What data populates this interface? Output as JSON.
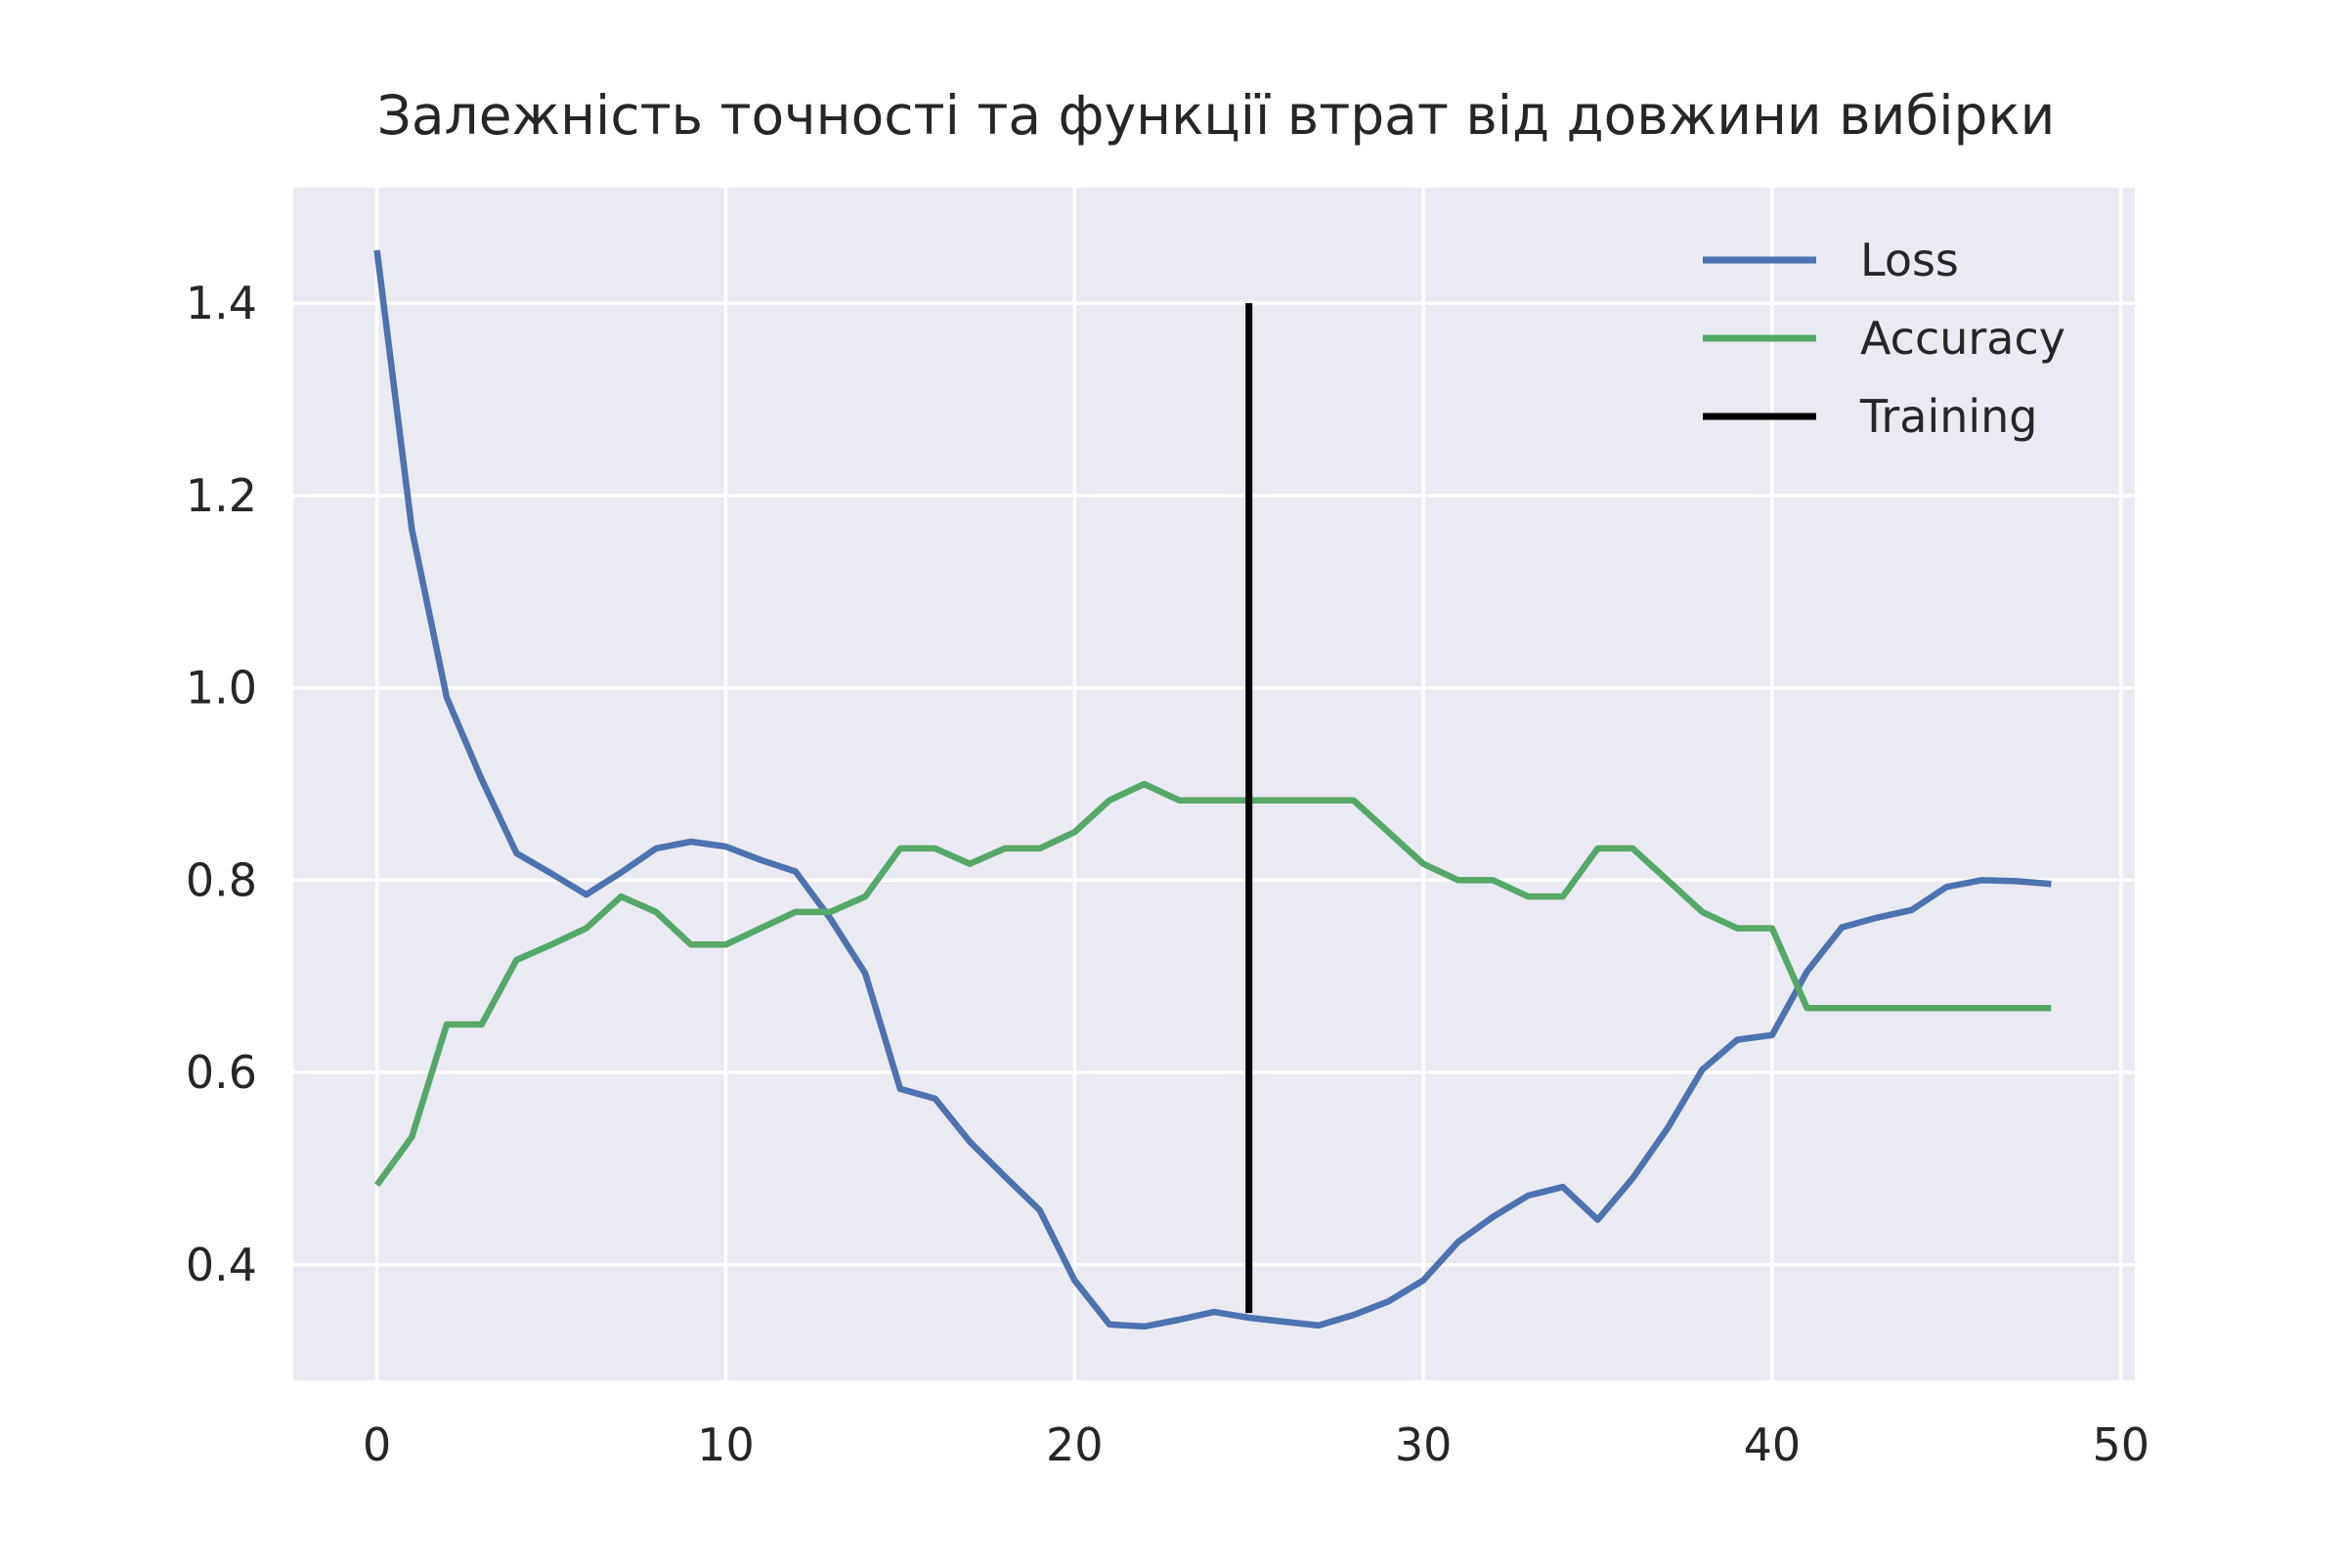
{
  "chart_data": {
    "type": "line",
    "title": "Залежність точності та функції втрат від довжини вибірки",
    "xlabel": "",
    "ylabel": "",
    "xlim": [
      -2.4,
      50.4
    ],
    "ylim": [
      0.28,
      1.52
    ],
    "xticks": [
      0,
      10,
      20,
      30,
      40,
      50
    ],
    "yticks": [
      0.4,
      0.6,
      0.8,
      1.0,
      1.2,
      1.4
    ],
    "xtick_labels": [
      "0",
      "10",
      "20",
      "30",
      "40",
      "50"
    ],
    "ytick_labels": [
      "0.4",
      "0.6",
      "0.8",
      "1.0",
      "1.2",
      "1.4"
    ],
    "grid": true,
    "legend_position": "top-right",
    "background_color": "#eaeaf2",
    "series": [
      {
        "name": "Loss",
        "color": "#4c72b0",
        "x": [
          0,
          1,
          2,
          3,
          4,
          5,
          6,
          7,
          8,
          9,
          10,
          11,
          12,
          13,
          14,
          15,
          16,
          17,
          18,
          19,
          20,
          21,
          22,
          23,
          24,
          25,
          26,
          27,
          28,
          29,
          30,
          31,
          32,
          33,
          34,
          35,
          36,
          37,
          38,
          39,
          40,
          41,
          42,
          43,
          44,
          45,
          46,
          47,
          48
        ],
        "y": [
          1.455,
          1.165,
          0.99,
          0.905,
          0.828,
          0.807,
          0.785,
          0.808,
          0.833,
          0.84,
          0.835,
          0.821,
          0.809,
          0.76,
          0.703,
          0.583,
          0.573,
          0.528,
          0.492,
          0.457,
          0.384,
          0.338,
          0.336,
          0.343,
          0.351,
          0.345,
          0.341,
          0.337,
          0.348,
          0.362,
          0.384,
          0.424,
          0.45,
          0.472,
          0.481,
          0.447,
          0.49,
          0.542,
          0.603,
          0.634,
          0.639,
          0.705,
          0.751,
          0.761,
          0.769,
          0.793,
          0.8,
          0.799,
          0.796
        ]
      },
      {
        "name": "Accuracy",
        "color": "#55a868",
        "x": [
          0,
          1,
          2,
          3,
          4,
          5,
          6,
          7,
          8,
          9,
          10,
          11,
          12,
          13,
          14,
          15,
          16,
          17,
          18,
          19,
          20,
          21,
          22,
          23,
          24,
          25,
          26,
          27,
          28,
          29,
          30,
          31,
          32,
          33,
          34,
          35,
          36,
          37,
          38,
          39,
          40,
          41,
          42,
          43,
          44,
          45,
          46,
          47,
          48
        ],
        "y": [
          0.483,
          0.533,
          0.65,
          0.65,
          0.717,
          0.733,
          0.75,
          0.783,
          0.767,
          0.733,
          0.733,
          0.75,
          0.767,
          0.767,
          0.783,
          0.833,
          0.833,
          0.817,
          0.833,
          0.833,
          0.85,
          0.883,
          0.9,
          0.883,
          0.883,
          0.883,
          0.883,
          0.883,
          0.883,
          0.85,
          0.817,
          0.8,
          0.8,
          0.783,
          0.783,
          0.833,
          0.833,
          0.8,
          0.767,
          0.75,
          0.75,
          0.667,
          0.667,
          0.667,
          0.667,
          0.667,
          0.667,
          0.667,
          0.667
        ]
      },
      {
        "name": "Training",
        "color": "#000000",
        "x": [
          25,
          25
        ],
        "y": [
          0.35,
          1.4
        ]
      }
    ]
  }
}
